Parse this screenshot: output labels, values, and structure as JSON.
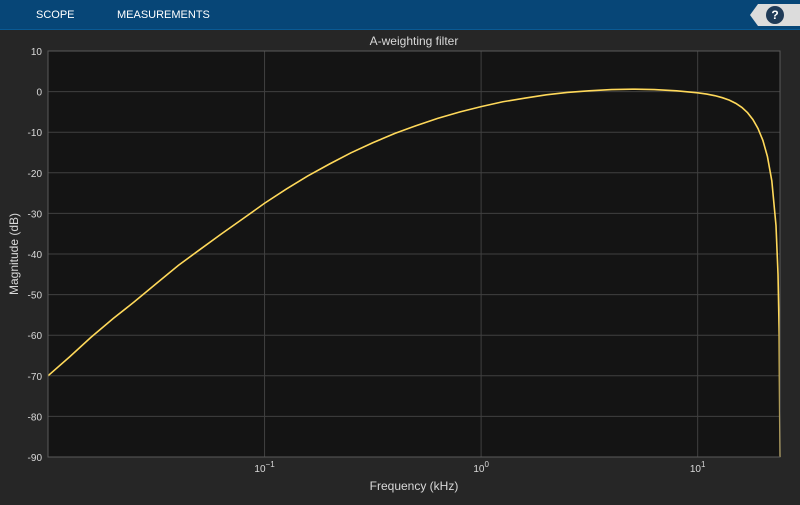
{
  "toolstrip": {
    "tabs": [
      "SCOPE",
      "MEASUREMENTS"
    ],
    "help_label": "?"
  },
  "colors": {
    "toolstrip_bg": "#074677",
    "figure_bg": "#262626",
    "axes_bg": "#141414",
    "grid": "#404040",
    "text": "#d9d9d9",
    "line": "#ffd95a"
  },
  "chart_data": {
    "type": "line",
    "title": "A-weighting filter",
    "xlabel": "Frequency (kHz)",
    "ylabel": "Magnitude (dB)",
    "xscale": "log",
    "xlim": [
      0.01,
      24
    ],
    "ylim": [
      -90,
      10
    ],
    "yticks": [
      10,
      0,
      -10,
      -20,
      -30,
      -40,
      -50,
      -60,
      -70,
      -80,
      -90
    ],
    "xticks": [
      {
        "value": 0.1,
        "base": "10",
        "exp": "−1"
      },
      {
        "value": 1,
        "label": "10",
        "exp": "0"
      },
      {
        "value": 10,
        "label": "10",
        "exp": "1"
      }
    ],
    "grid": true,
    "series": [
      {
        "color": "#ffd95a",
        "x": [
          0.01,
          0.0126,
          0.0158,
          0.02,
          0.025,
          0.0316,
          0.04,
          0.05,
          0.063,
          0.08,
          0.1,
          0.126,
          0.158,
          0.2,
          0.25,
          0.316,
          0.4,
          0.5,
          0.63,
          0.8,
          1,
          1.26,
          1.6,
          2,
          2.5,
          3.15,
          4,
          5,
          6.3,
          8,
          10,
          11,
          12,
          13,
          14,
          15,
          16,
          17,
          18,
          19,
          20,
          21,
          22,
          23,
          23.5,
          23.8,
          24
        ],
        "y": [
          -70,
          -65.3,
          -60.5,
          -55.9,
          -51.8,
          -47.3,
          -42.8,
          -39.0,
          -35.1,
          -31.2,
          -27.5,
          -24.0,
          -20.8,
          -17.8,
          -15.1,
          -12.6,
          -10.3,
          -8.4,
          -6.6,
          -5.0,
          -3.7,
          -2.5,
          -1.6,
          -0.8,
          -0.2,
          0.2,
          0.5,
          0.6,
          0.5,
          0.2,
          -0.3,
          -0.6,
          -1.0,
          -1.5,
          -2.1,
          -2.9,
          -3.9,
          -5.2,
          -6.9,
          -9.1,
          -12.0,
          -16.0,
          -22.0,
          -33.0,
          -45.0,
          -60.0,
          -90.0
        ]
      }
    ]
  }
}
